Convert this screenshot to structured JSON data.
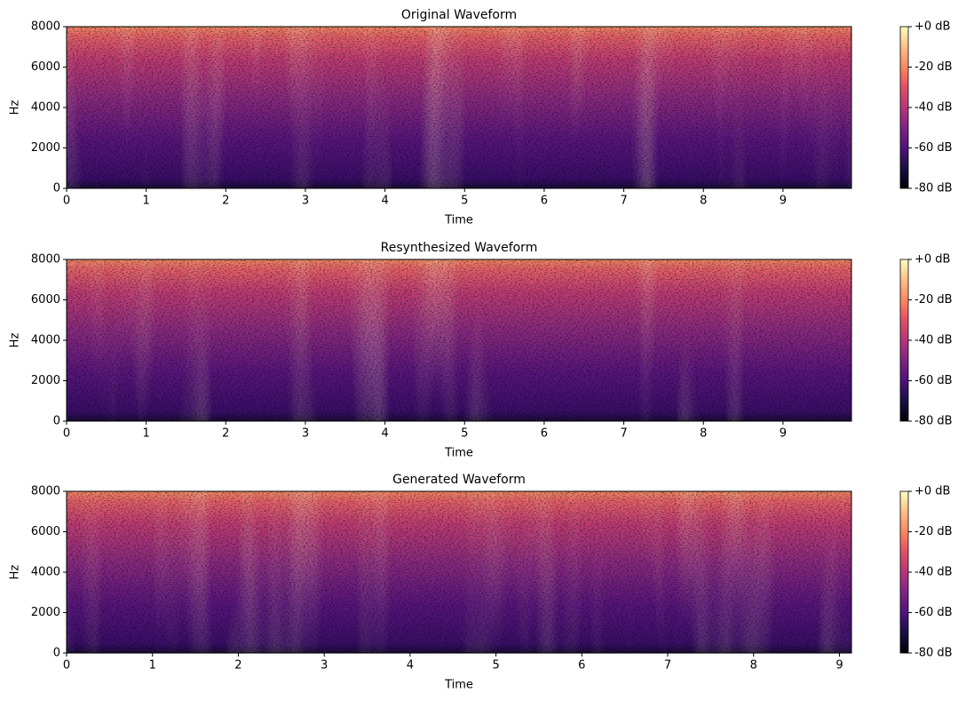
{
  "chart_data": [
    {
      "type": "spectrogram",
      "title": "Original Waveform",
      "xlabel": "Time",
      "ylabel": "Hz",
      "colormap": "magma",
      "xlim": [
        0,
        9.86
      ],
      "xticks": [
        0,
        1,
        2,
        3,
        4,
        5,
        6,
        7,
        8,
        9
      ],
      "ylim": [
        0,
        8000
      ],
      "yticks": [
        0,
        2000,
        4000,
        6000,
        8000
      ],
      "clim": [
        -80,
        0
      ],
      "cticks": [
        {
          "value": -80,
          "label": "-80 dB"
        },
        {
          "value": -60,
          "label": "-60 dB"
        },
        {
          "value": -40,
          "label": "-40 dB"
        },
        {
          "value": -20,
          "label": "-20 dB"
        },
        {
          "value": 0,
          "label": "+0 dB"
        }
      ]
    },
    {
      "type": "spectrogram",
      "title": "Resynthesized Waveform",
      "xlabel": "Time",
      "ylabel": "Hz",
      "colormap": "magma",
      "xlim": [
        0,
        9.86
      ],
      "xticks": [
        0,
        1,
        2,
        3,
        4,
        5,
        6,
        7,
        8,
        9
      ],
      "ylim": [
        0,
        8000
      ],
      "yticks": [
        0,
        2000,
        4000,
        6000,
        8000
      ],
      "clim": [
        -80,
        0
      ],
      "cticks": [
        {
          "value": -80,
          "label": "-80 dB"
        },
        {
          "value": -60,
          "label": "-60 dB"
        },
        {
          "value": -40,
          "label": "-40 dB"
        },
        {
          "value": -20,
          "label": "-20 dB"
        },
        {
          "value": 0,
          "label": "+0 dB"
        }
      ]
    },
    {
      "type": "spectrogram",
      "title": "Generated Waveform",
      "xlabel": "Time",
      "ylabel": "Hz",
      "colormap": "magma",
      "xlim": [
        0,
        9.14
      ],
      "xticks": [
        0,
        1,
        2,
        3,
        4,
        5,
        6,
        7,
        8,
        9
      ],
      "ylim": [
        0,
        8000
      ],
      "yticks": [
        0,
        2000,
        4000,
        6000,
        8000
      ],
      "clim": [
        -80,
        0
      ],
      "cticks": [
        {
          "value": -80,
          "label": "-80 dB"
        },
        {
          "value": -60,
          "label": "-60 dB"
        },
        {
          "value": -40,
          "label": "-40 dB"
        },
        {
          "value": -20,
          "label": "-20 dB"
        },
        {
          "value": 0,
          "label": "+0 dB"
        }
      ]
    }
  ]
}
